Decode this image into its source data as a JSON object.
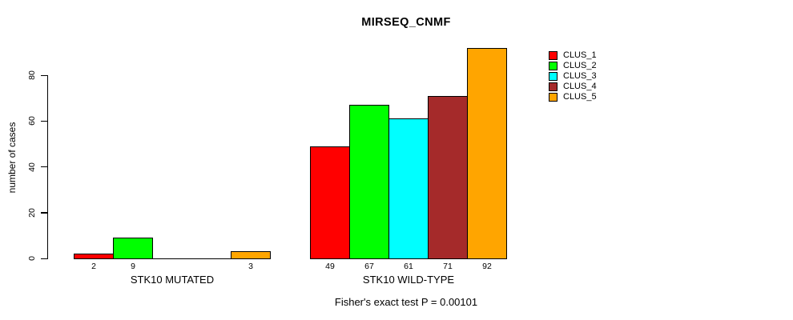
{
  "chart_data": {
    "type": "bar",
    "title": "MIRSEQ_CNMF",
    "ylabel": "number of cases",
    "annotation": "Fisher's exact test P = 0.00101",
    "categories": [
      "STK10 MUTATED",
      "STK10 WILD-TYPE"
    ],
    "series": [
      {
        "name": "CLUS_1",
        "color": "#FF0000",
        "values": [
          2,
          49
        ]
      },
      {
        "name": "CLUS_2",
        "color": "#00FF00",
        "values": [
          9,
          67
        ]
      },
      {
        "name": "CLUS_3",
        "color": "#00FFFF",
        "values": [
          0,
          61
        ]
      },
      {
        "name": "CLUS_4",
        "color": "#A52A2A",
        "values": [
          0,
          71
        ]
      },
      {
        "name": "CLUS_5",
        "color": "#FFA500",
        "values": [
          3,
          92
        ]
      }
    ],
    "bar_labels": {
      "STK10 MUTATED": [
        "2",
        "9",
        "",
        "",
        "3"
      ],
      "STK10 WILD-TYPE": [
        "49",
        "67",
        "61",
        "71",
        "92"
      ]
    },
    "y_ticks": [
      0,
      20,
      40,
      60,
      80
    ],
    "ylim": [
      0,
      80
    ],
    "grid": false,
    "legend_position": "right",
    "axis_color": "#000000",
    "background_color": "#FFFFFF"
  }
}
